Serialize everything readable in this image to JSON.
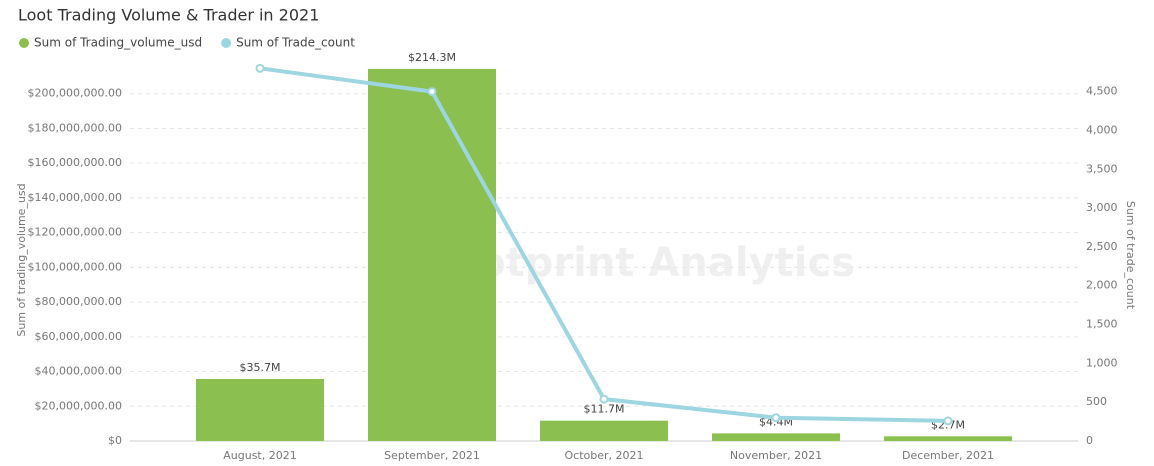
{
  "chart_data": {
    "type": "bar-line",
    "title": "Loot Trading Volume & Trader in 2021",
    "watermark": "Footprint Analytics",
    "y_label": "Sum of trading_volume_usd",
    "y2_label": "Sum of trade_count",
    "categories": [
      "August, 2021",
      "September, 2021",
      "October, 2021",
      "November, 2021",
      "December, 2021"
    ],
    "series": [
      {
        "name": "Sum of Trading_volume_usd",
        "type": "bar",
        "color": "#8bbf4f",
        "values": [
          35700000,
          214300000,
          11700000,
          4400000,
          2700000
        ],
        "value_labels": [
          "$35.7M",
          "$214.3M",
          "$11.7M",
          "$4.4M",
          "$2.7M"
        ]
      },
      {
        "name": "Sum of Trade_count",
        "type": "line",
        "axis": "y2",
        "color": "#9dd5e0",
        "values": [
          4800,
          4500,
          540,
          300,
          260
        ]
      }
    ],
    "ylim": [
      0,
      220000000
    ],
    "yticks": [
      {
        "value": 0,
        "label": "$0"
      },
      {
        "value": 20000000,
        "label": "$20,000,000.00"
      },
      {
        "value": 40000000,
        "label": "$40,000,000.00"
      },
      {
        "value": 60000000,
        "label": "$60,000,000.00"
      },
      {
        "value": 80000000,
        "label": "$80,000,000.00"
      },
      {
        "value": 100000000,
        "label": "$100,000,000.00"
      },
      {
        "value": 120000000,
        "label": "$120,000,000.00"
      },
      {
        "value": 140000000,
        "label": "$140,000,000.00"
      },
      {
        "value": 160000000,
        "label": "$160,000,000.00"
      },
      {
        "value": 180000000,
        "label": "$180,000,000.00"
      },
      {
        "value": 200000000,
        "label": "$200,000,000.00"
      }
    ],
    "y2lim": [
      0,
      4920
    ],
    "y2ticks": [
      0,
      500,
      {
        "value": 1000,
        "label": "1,000"
      },
      {
        "value": 1500,
        "label": "1,500"
      },
      {
        "value": 2000,
        "label": "2,000"
      },
      {
        "value": 2500,
        "label": "2,500"
      },
      {
        "value": 3000,
        "label": "3,000"
      },
      {
        "value": 3500,
        "label": "3,500"
      },
      {
        "value": 4000,
        "label": "4,000"
      },
      {
        "value": 4500,
        "label": "4,500"
      }
    ],
    "grid": true
  }
}
